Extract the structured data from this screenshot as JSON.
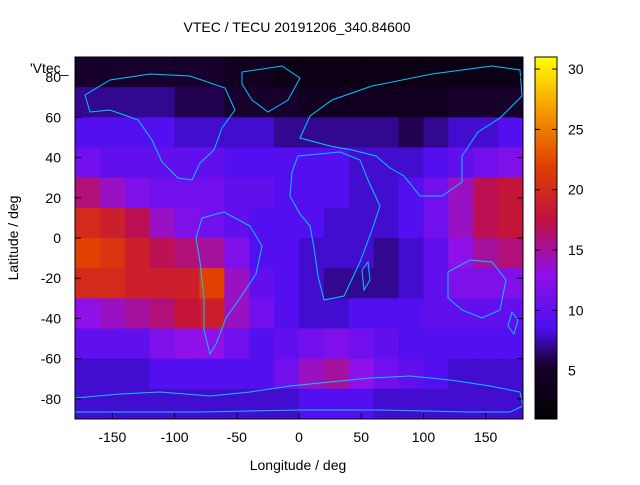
{
  "chart_data": {
    "type": "heatmap",
    "title": "VTEC / TECU 20191206_340.84600",
    "xlabel": "Longitude / deg",
    "ylabel": "Latitude / deg",
    "xlim": [
      -180,
      180
    ],
    "ylim": [
      -90,
      90
    ],
    "x_ticks": [
      -150,
      -100,
      -50,
      0,
      50,
      100,
      150
    ],
    "y_ticks": [
      -80,
      -60,
      -40,
      -20,
      0,
      20,
      40,
      60,
      80
    ],
    "legend_label": "'Vtec_",
    "legend_position": "top-left",
    "colorbar": {
      "min": 1,
      "max": 31,
      "ticks": [
        5,
        10,
        15,
        20,
        25,
        30
      ],
      "palette": "black-purple-red-orange-yellow"
    },
    "overlay": "continent coastlines (cyan)",
    "grid": false,
    "field": {
      "lat_step": 15,
      "lat_centers": [
        82.5,
        67.5,
        52.5,
        37.5,
        22.5,
        7.5,
        -7.5,
        -22.5,
        -37.5,
        -52.5,
        -67.5,
        -82.5
      ],
      "lon_step": 20,
      "lon_centers": [
        -170,
        -150,
        -130,
        -110,
        -90,
        -70,
        -50,
        -30,
        -10,
        10,
        30,
        50,
        70,
        90,
        110,
        130,
        150,
        170
      ],
      "values": [
        [
          5,
          5,
          5,
          5,
          5,
          5,
          4,
          4,
          3,
          3,
          3,
          3,
          3,
          3,
          3,
          3,
          3,
          3
        ],
        [
          7,
          7,
          7,
          7,
          6,
          6,
          5,
          5,
          5,
          4,
          4,
          4,
          4,
          4,
          4,
          5,
          5,
          5
        ],
        [
          9,
          9,
          9,
          9,
          8,
          8,
          8,
          8,
          7,
          7,
          7,
          7,
          7,
          6,
          7,
          8,
          8,
          9
        ],
        [
          11,
          10,
          10,
          10,
          10,
          10,
          9,
          9,
          9,
          9,
          9,
          8,
          8,
          8,
          9,
          10,
          11,
          12
        ],
        [
          16,
          14,
          12,
          11,
          11,
          11,
          10,
          10,
          9,
          9,
          9,
          8,
          8,
          9,
          11,
          14,
          17,
          18
        ],
        [
          20,
          19,
          17,
          14,
          12,
          11,
          10,
          9,
          9,
          9,
          8,
          8,
          8,
          9,
          11,
          14,
          17,
          18
        ],
        [
          22,
          21,
          19,
          17,
          16,
          15,
          12,
          9,
          9,
          8,
          8,
          8,
          7,
          8,
          10,
          13,
          15,
          16
        ],
        [
          20,
          20,
          19,
          19,
          19,
          22,
          14,
          10,
          9,
          8,
          7,
          7,
          7,
          8,
          10,
          12,
          12,
          12
        ],
        [
          13,
          14,
          15,
          16,
          18,
          19,
          14,
          11,
          9,
          8,
          8,
          9,
          9,
          9,
          10,
          10,
          10,
          10
        ],
        [
          10,
          10,
          10,
          12,
          13,
          13,
          11,
          9,
          10,
          11,
          12,
          11,
          10,
          9,
          9,
          9,
          9,
          9
        ],
        [
          8,
          8,
          8,
          9,
          9,
          9,
          9,
          9,
          11,
          14,
          15,
          13,
          11,
          10,
          9,
          8,
          8,
          8
        ],
        [
          8,
          8,
          8,
          8,
          8,
          8,
          8,
          8,
          8,
          9,
          9,
          9,
          8,
          8,
          8,
          8,
          8,
          8
        ]
      ]
    }
  }
}
